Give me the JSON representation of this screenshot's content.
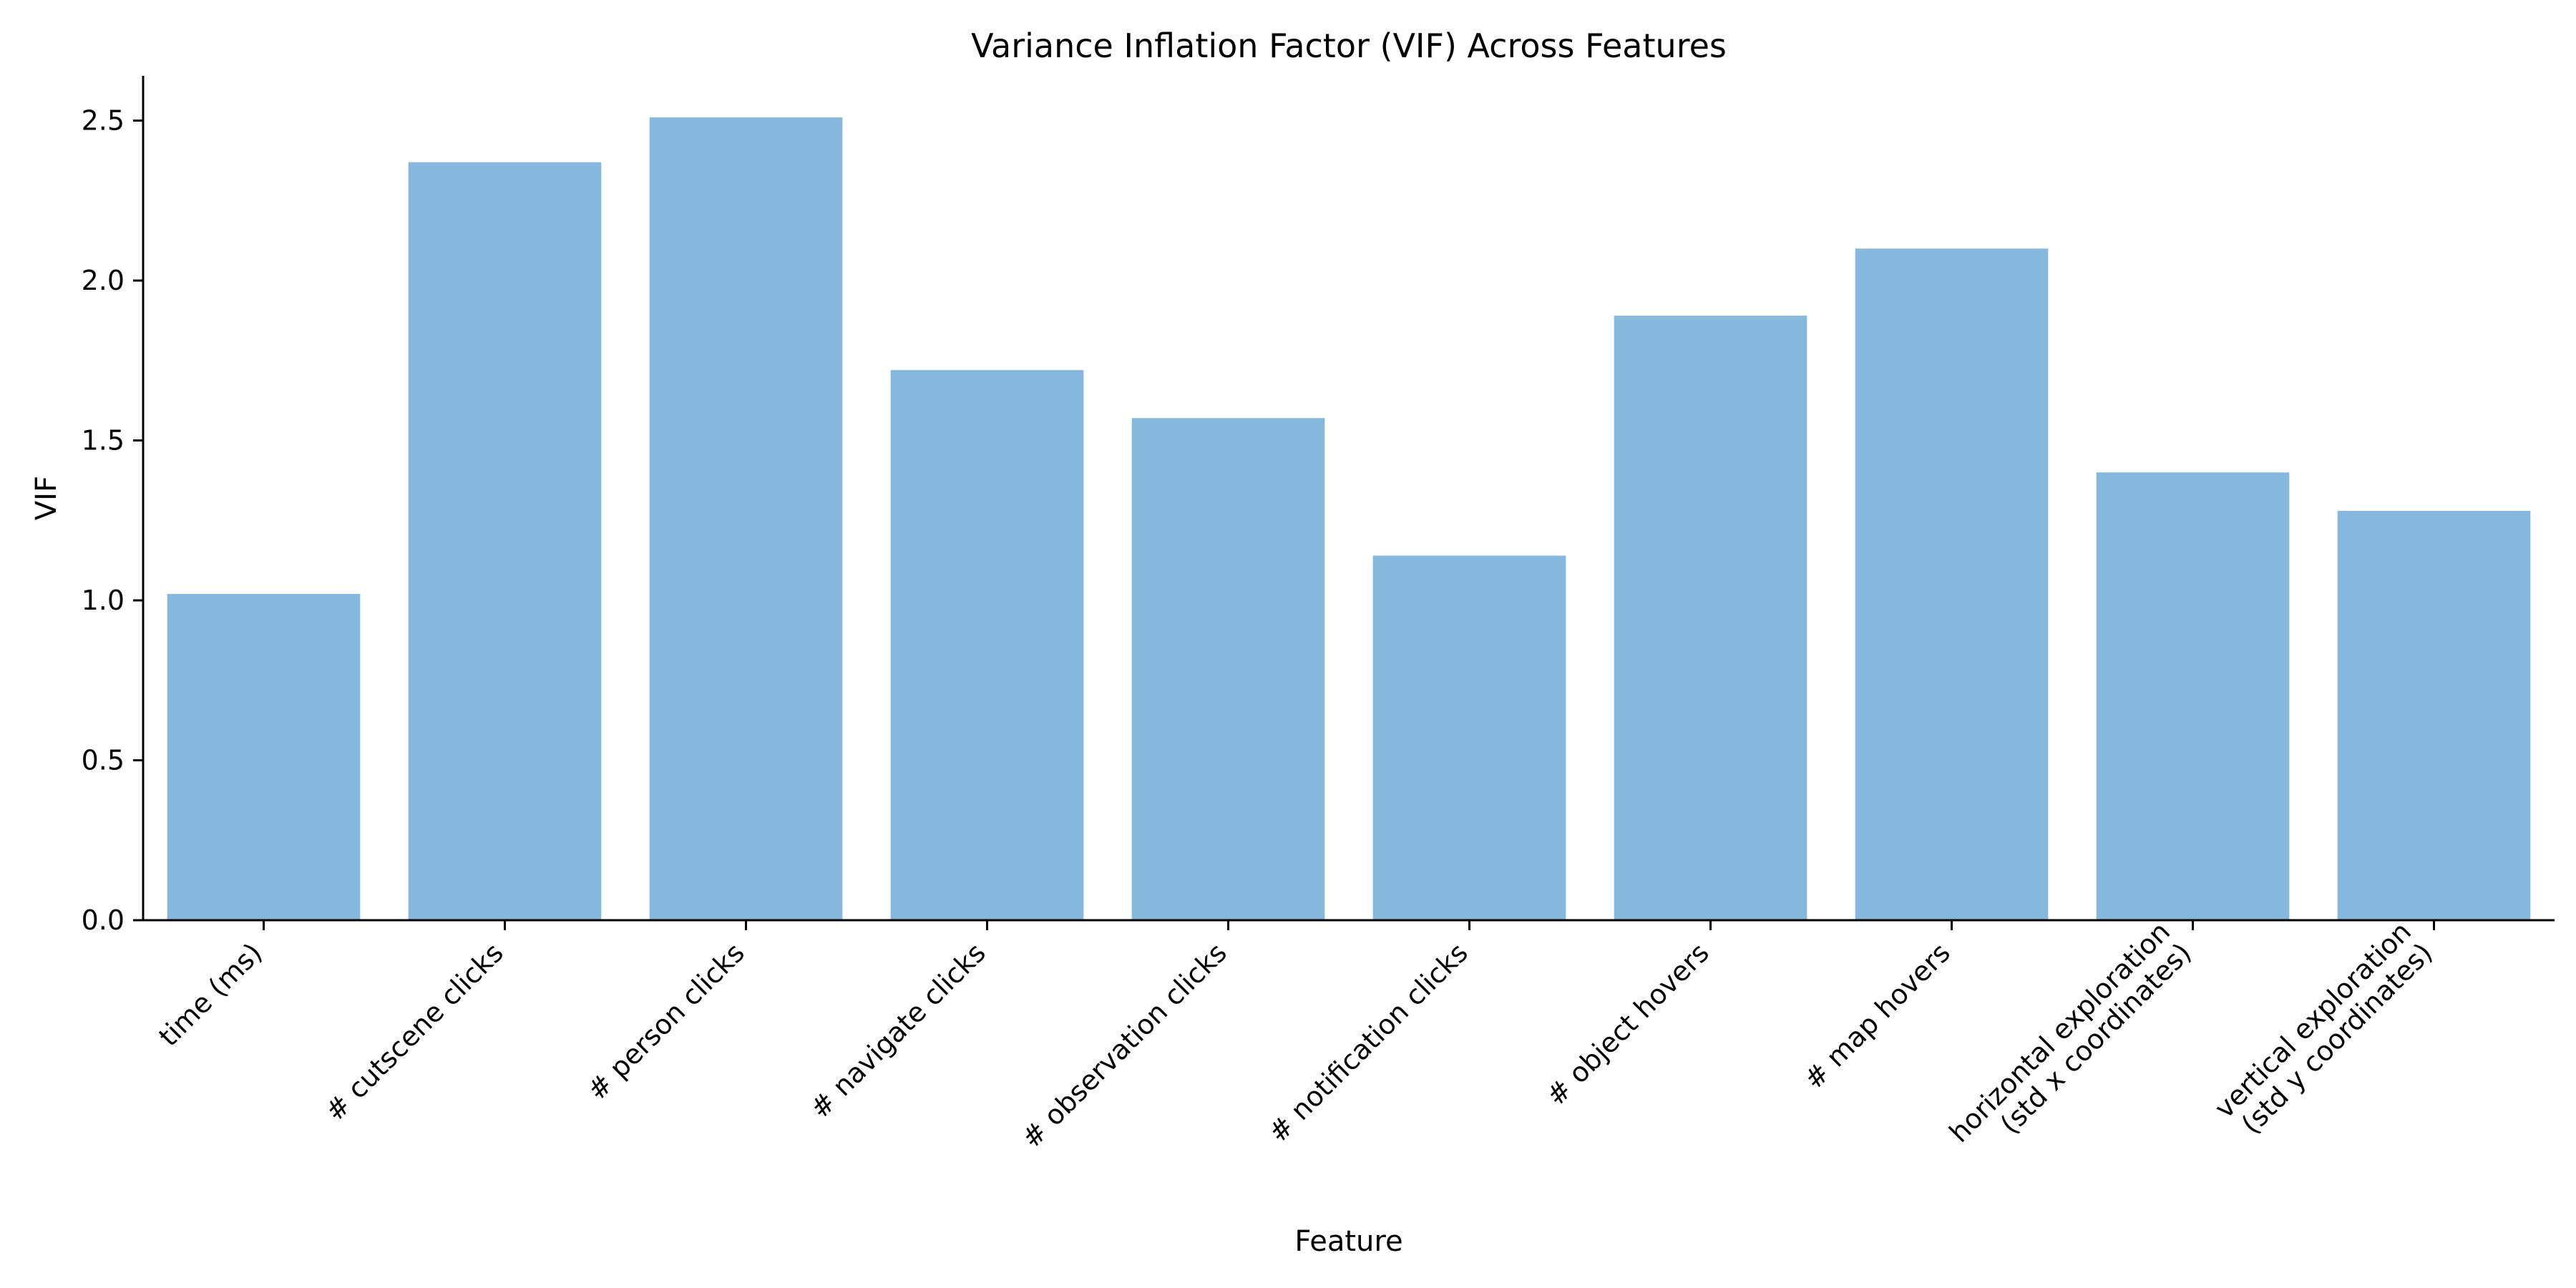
{
  "chart_data": {
    "type": "bar",
    "title": "Variance Inflation Factor (VIF) Across Features",
    "xlabel": "Feature",
    "ylabel": "VIF",
    "categories": [
      "time (ms)",
      "# cutscene clicks",
      "# person clicks",
      "# navigate clicks",
      "# observation clicks",
      "# notification clicks",
      "# object hovers",
      "# map hovers",
      "horizontal exploration\n(std x coordinates)",
      "vertical exploration\n(std y coordinates)"
    ],
    "values": [
      1.02,
      2.37,
      2.51,
      1.72,
      1.57,
      1.14,
      1.89,
      2.1,
      1.4,
      1.28
    ],
    "ylim": [
      0,
      2.64
    ],
    "yticks": [
      0.0,
      0.5,
      1.0,
      1.5,
      2.0,
      2.5
    ],
    "ytick_labels": [
      "0.0",
      "0.5",
      "1.0",
      "1.5",
      "2.0",
      "2.5"
    ],
    "grid": false,
    "bar_color": "#85b8dc"
  }
}
